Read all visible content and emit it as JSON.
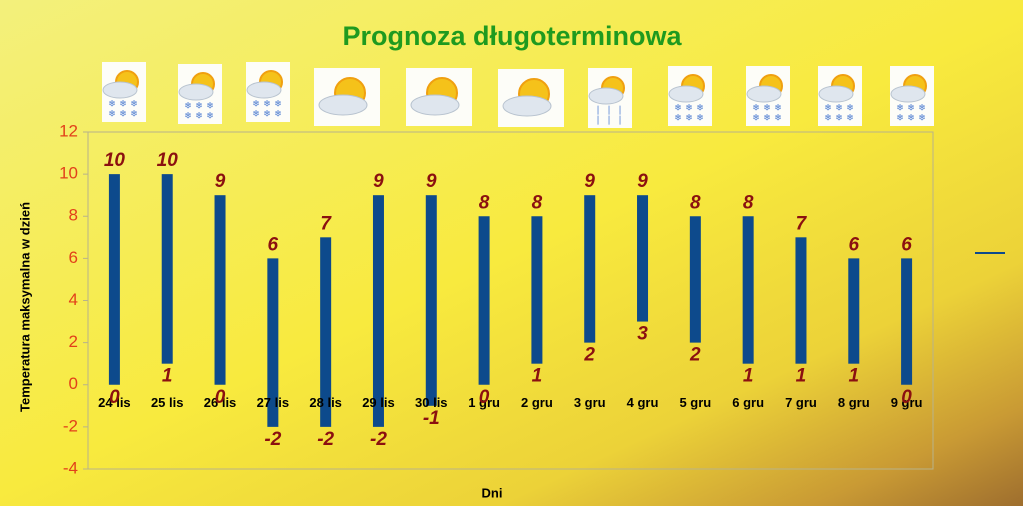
{
  "chart_data": {
    "type": "floating-bar",
    "title": "Prognoza długoterminowa",
    "x_label": "Dni",
    "y_label": "Temperatura maksymalna w dzień",
    "categories": [
      "24 lis",
      "25 lis",
      "26 lis",
      "27 lis",
      "28 lis",
      "29 lis",
      "30 lis",
      "1 gru",
      "2 gru",
      "3 gru",
      "4 gru",
      "5 gru",
      "6 gru",
      "7 gru",
      "8 gru",
      "9 gru"
    ],
    "high": [
      10,
      10,
      9,
      6,
      7,
      9,
      9,
      8,
      8,
      9,
      9,
      8,
      8,
      7,
      6,
      6
    ],
    "low": [
      0,
      1,
      0,
      -2,
      -2,
      -2,
      -1,
      0,
      1,
      2,
      3,
      2,
      1,
      1,
      1,
      0
    ],
    "color": "#0d4a8c",
    "ylim": [
      -4,
      12
    ],
    "yticks": [
      -4,
      -2,
      0,
      2,
      4,
      6,
      8,
      10,
      12
    ]
  }
}
